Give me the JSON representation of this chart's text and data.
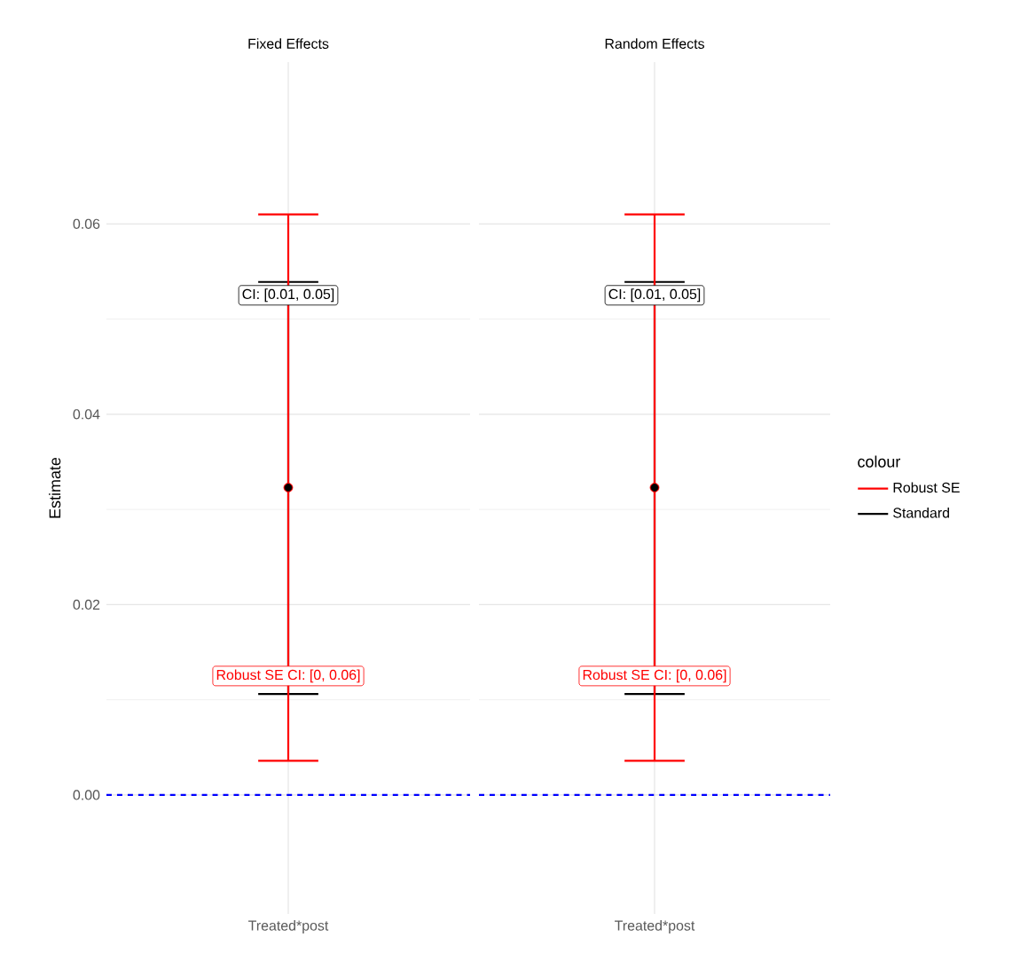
{
  "chart_data": [
    {
      "type": "scatter",
      "title": "Fixed Effects",
      "ylabel": "Estimate",
      "categories": [
        "Treated*post"
      ],
      "series": [
        {
          "color": "#ff0000",
          "values": [
            0.0323
          ],
          "errors": [
            [
              0.0036,
              0.061
            ]
          ],
          "marker": "circle"
        },
        {
          "color": "#000000",
          "values": [
            0.0323
          ],
          "errors": [
            [
              0.0106,
              0.0539
            ]
          ],
          "marker": "circle"
        }
      ],
      "ylim": [
        -0.0125,
        0.077
      ],
      "yticks": [
        {
          "value": 0,
          "label": "0.00"
        },
        {
          "value": 0.02,
          "label": "0.02"
        },
        {
          "value": 0.04,
          "label": "0.04"
        },
        {
          "value": 0.06,
          "label": "0.06"
        }
      ],
      "grid": true,
      "ref_lines": [
        {
          "axis": "y",
          "value": 0,
          "color": "#0000ff",
          "line_style": "dashed"
        }
      ],
      "annotations": [
        {
          "text": "CI: [0.01, 0.05]",
          "x": "Treated*post",
          "y": 0.0525
        },
        {
          "text": "Robust SE CI: [0, 0.06]",
          "x": "Treated*post",
          "y": 0.0125
        }
      ]
    },
    {
      "type": "scatter",
      "title": "Random Effects",
      "categories": [
        "Treated*post"
      ],
      "series": [
        {
          "name": "Robust SE",
          "color": "#ff0000",
          "values": [
            0.0323
          ],
          "errors": [
            [
              0.0036,
              0.061
            ]
          ],
          "marker": "circle"
        },
        {
          "name": "Standard",
          "color": "#000000",
          "values": [
            0.0323
          ],
          "errors": [
            [
              0.0106,
              0.0539
            ]
          ],
          "marker": "circle"
        }
      ],
      "ylim": [
        -0.0125,
        0.077
      ],
      "yticks": [
        0,
        0.02,
        0.04,
        0.06
      ],
      "grid": true,
      "tick_labels": "x",
      "legend": "right",
      "legend_title": "colour",
      "ref_lines": [
        {
          "axis": "y",
          "value": 0,
          "color": "#0000ff",
          "line_style": "dashed"
        }
      ],
      "annotations": [
        {
          "text": "CI: [0.01, 0.05]",
          "x": "Treated*post",
          "y": 0.0525
        },
        {
          "text": "Robust SE CI: [0, 0.06]",
          "x": "Treated*post",
          "y": 0.0125
        }
      ]
    }
  ]
}
